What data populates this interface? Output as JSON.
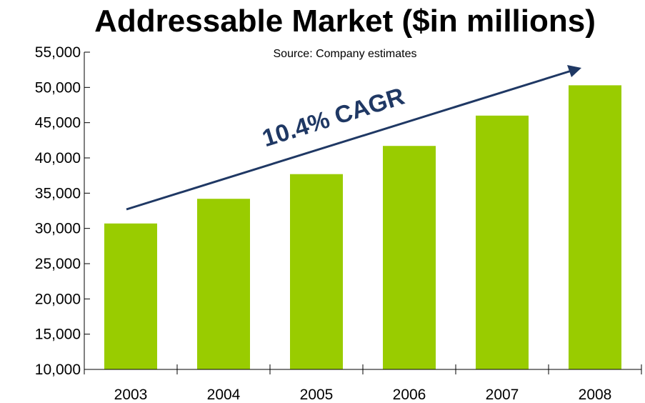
{
  "chart_data": {
    "type": "bar",
    "title": "Addressable Market ($in millions)",
    "subtitle": "Source:  Company estimates",
    "annotation": "10.4% CAGR",
    "categories": [
      "2003",
      "2004",
      "2005",
      "2006",
      "2007",
      "2008"
    ],
    "values": [
      30700,
      34200,
      37700,
      41700,
      46000,
      50300
    ],
    "ylim": [
      10000,
      55000
    ],
    "yticks": [
      10000,
      15000,
      20000,
      25000,
      30000,
      35000,
      40000,
      45000,
      50000,
      55000
    ],
    "ytick_labels": [
      "10,000",
      "15,000",
      "20,000",
      "25,000",
      "30,000",
      "35,000",
      "40,000",
      "45,000",
      "50,000",
      "55,000"
    ],
    "grid": false,
    "legend": "none",
    "colors": {
      "bar": "#99cc00",
      "arrow": "#1f3864",
      "axis": "#000000"
    }
  }
}
